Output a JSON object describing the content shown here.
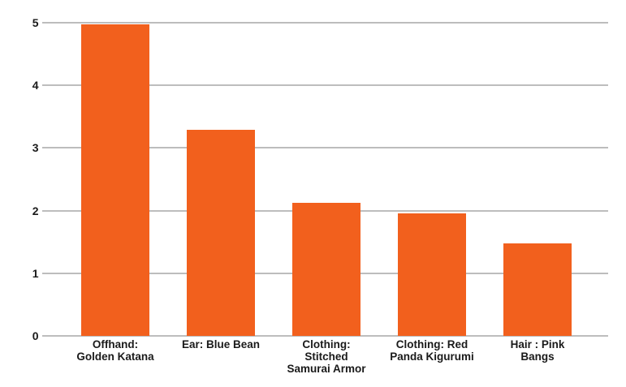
{
  "chart": {
    "accent_color": "#f2601d",
    "gridline_color": "#bdbdbd",
    "text_color": "#1a1a1a",
    "background_color": "#ffffff"
  },
  "chart_data": {
    "type": "bar",
    "title": "",
    "xlabel": "",
    "ylabel": "",
    "categories": [
      "Offhand: Golden Katana",
      "Ear: Blue Bean",
      "Clothing: Stitched Samurai Armor",
      "Clothing: Red Panda Kigurumi",
      "Hair : Pink Bangs"
    ],
    "tick_labels_wrapped": [
      "Offhand:\nGolden Katana",
      "Ear: Blue Bean",
      "Clothing:\nStitched\nSamurai Armor",
      "Clothing: Red\nPanda Kigurumi",
      "Hair : Pink\nBangs"
    ],
    "values": [
      4.97,
      3.29,
      2.12,
      1.95,
      1.48
    ],
    "ylim": [
      0,
      5
    ],
    "yticks": [
      0,
      1,
      2,
      3,
      4,
      5
    ],
    "grid": true,
    "legend": "none",
    "bar_color": "#f2601d"
  }
}
